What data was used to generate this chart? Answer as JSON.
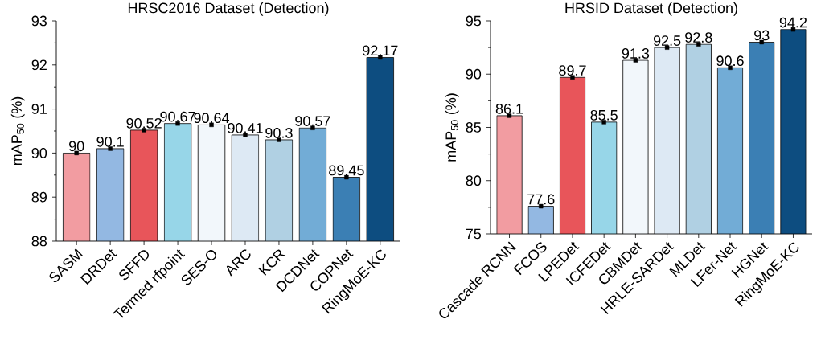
{
  "chart_data": [
    {
      "type": "bar",
      "title": "HRSC2016 Dataset (Detection)",
      "ylabel": "mAP$_{50}$ (%)",
      "categories": [
        "SASM",
        "DRDet",
        "SFFD",
        "Termed rfpoint",
        "SES-O",
        "ARC",
        "KCR",
        "DCDNet",
        "COPNet",
        "RingMoE-KC"
      ],
      "series": [
        {
          "type": "bar",
          "values": [
            90,
            90.1,
            90.52,
            90.67,
            90.64,
            90.41,
            90.3,
            90.57,
            89.45,
            92.17
          ],
          "value_labels": [
            "90",
            "90.1",
            "90.52",
            "90.67",
            "90.64",
            "90.41",
            "90.3",
            "90.57",
            "89.45",
            "92.17"
          ],
          "colors": [
            "#f29ca1",
            "#93b8e2",
            "#e8555a",
            "#97d6e8",
            "#f2f7fb",
            "#dde9f4",
            "#b0d0e3",
            "#72acd6",
            "#3b7fb4",
            "#0d4d80"
          ]
        },
        {
          "type": "scatter",
          "marker": "square",
          "color": "#000000",
          "x": [
            "SASM",
            "DRDet",
            "SFFD",
            "Termed rfpoint",
            "SES-O",
            "ARC",
            "KCR",
            "DCDNet",
            "COPNet",
            "RingMoE-KC"
          ],
          "values": [
            90,
            90.1,
            90.52,
            90.67,
            90.64,
            90.41,
            90.3,
            90.57,
            89.45,
            92.17
          ]
        }
      ],
      "ylim": [
        88,
        93
      ],
      "yticks": [
        88,
        89,
        90,
        91,
        92,
        93
      ],
      "grid": false
    },
    {
      "type": "bar",
      "title": "HRSID Dataset (Detection)",
      "ylabel": "mAP$_{50}$ (%)",
      "categories": [
        "Cascade RCNN",
        "FCOS",
        "LPEDet",
        "ICFEDet",
        "CBMDet",
        "HRLE-SARDet",
        "MLDet",
        "LFer-Net",
        "HGNet",
        "RingMoE-KC"
      ],
      "series": [
        {
          "type": "bar",
          "values": [
            86.1,
            77.6,
            89.7,
            85.5,
            91.3,
            92.5,
            92.8,
            90.6,
            93,
            94.2
          ],
          "value_labels": [
            "86.1",
            "77.6",
            "89.7",
            "85.5",
            "91.3",
            "92.5",
            "92.8",
            "90.6",
            "93",
            "94.2"
          ],
          "colors": [
            "#f29ca1",
            "#93b8e2",
            "#e8555a",
            "#97d6e8",
            "#f2f7fb",
            "#dde9f4",
            "#b0d0e3",
            "#72acd6",
            "#3b7fb4",
            "#0d4d80"
          ]
        },
        {
          "type": "scatter",
          "marker": "square",
          "color": "#000000",
          "x": [
            "Cascade RCNN",
            "FCOS",
            "LPEDet",
            "ICFEDet",
            "CBMDet",
            "HRLE-SARDet",
            "MLDet",
            "LFer-Net",
            "HGNet",
            "RingMoE-KC"
          ],
          "values": [
            86.1,
            77.6,
            89.7,
            85.5,
            91.3,
            92.5,
            92.8,
            90.6,
            93,
            94.2
          ]
        }
      ],
      "ylim": [
        75,
        95
      ],
      "yticks": [
        75,
        80,
        85,
        90,
        95
      ],
      "grid": false
    }
  ]
}
